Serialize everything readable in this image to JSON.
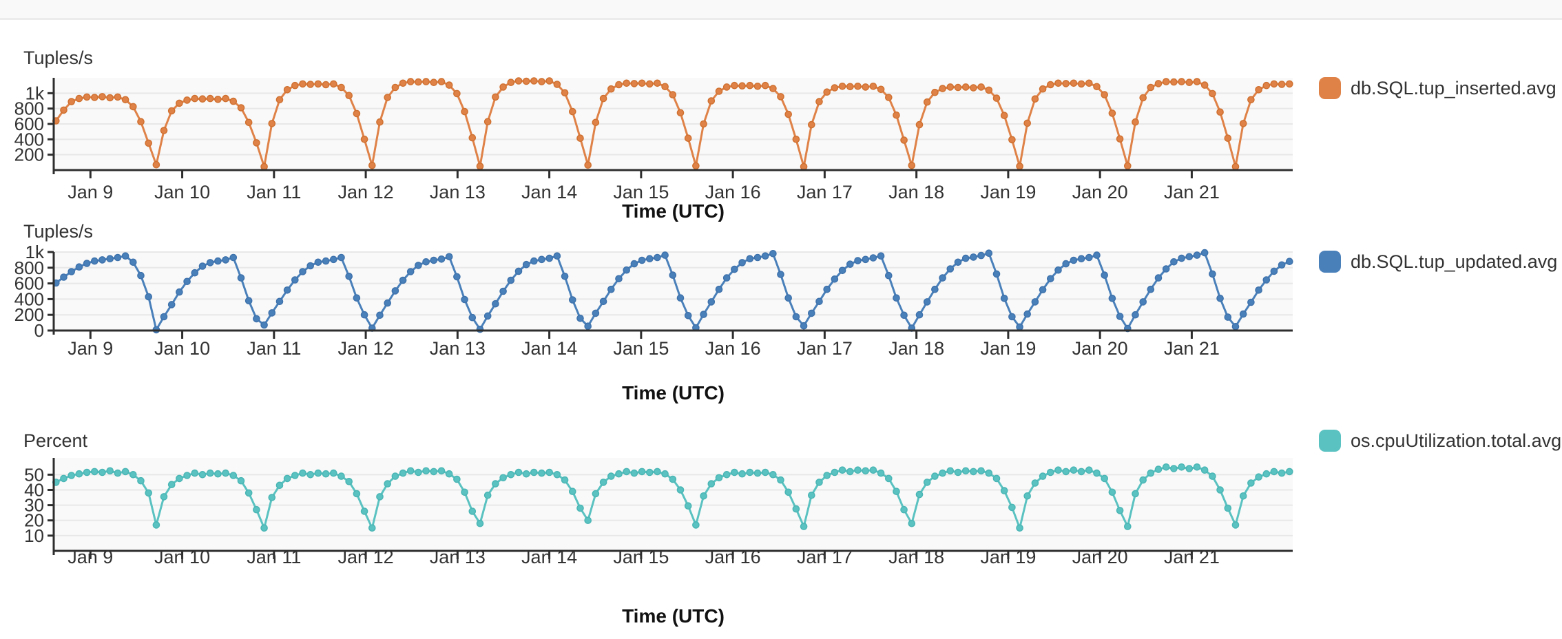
{
  "page": {
    "background": "#ffffff",
    "topbar_color": "#f9f9f9",
    "topbar_border": "#ececec"
  },
  "chart_data": [
    {
      "type": "line",
      "title": "",
      "ylabel": "Tuples/s",
      "xlabel": "Time (UTC)",
      "legend_position": "right-top",
      "grid": true,
      "plot_bg": "#f9f9f9",
      "grid_color": "#e8e8e8",
      "axis_color": "#2e2e2e",
      "text_color": "#333333",
      "x_range": [
        8.6,
        22.1
      ],
      "ylim": [
        0,
        1200
      ],
      "y_ticks": [
        {
          "v": 200,
          "label": "200"
        },
        {
          "v": 400,
          "label": "400"
        },
        {
          "v": 600,
          "label": "600"
        },
        {
          "v": 800,
          "label": "800"
        },
        {
          "v": 1000,
          "label": "1k"
        }
      ],
      "x_ticks": [
        {
          "t": 9,
          "label": "Jan 9"
        },
        {
          "t": 10,
          "label": "Jan 10"
        },
        {
          "t": 11,
          "label": "Jan 11"
        },
        {
          "t": 12,
          "label": "Jan 12"
        },
        {
          "t": 13,
          "label": "Jan 13"
        },
        {
          "t": 14,
          "label": "Jan 14"
        },
        {
          "t": 15,
          "label": "Jan 15"
        },
        {
          "t": 16,
          "label": "Jan 16"
        },
        {
          "t": 17,
          "label": "Jan 17"
        },
        {
          "t": 18,
          "label": "Jan 18"
        },
        {
          "t": 19,
          "label": "Jan 19"
        },
        {
          "t": 20,
          "label": "Jan 20"
        },
        {
          "t": 21,
          "label": "Jan 21"
        }
      ],
      "series": [
        {
          "name": "db.SQL.tup_inserted.avg",
          "color": "#DF8248",
          "edge_color": "#CF702F",
          "t0": 8.625,
          "dt": 0.084,
          "values": [
            640,
            780,
            890,
            930,
            950,
            945,
            955,
            940,
            950,
            915,
            825,
            630,
            350,
            70,
            515,
            770,
            870,
            910,
            930,
            925,
            930,
            920,
            930,
            895,
            810,
            620,
            355,
            45,
            605,
            915,
            1045,
            1100,
            1120,
            1115,
            1120,
            1110,
            1120,
            1075,
            970,
            735,
            400,
            60,
            625,
            945,
            1075,
            1130,
            1150,
            1145,
            1150,
            1140,
            1150,
            1105,
            995,
            760,
            420,
            50,
            630,
            950,
            1080,
            1140,
            1160,
            1155,
            1160,
            1150,
            1160,
            1115,
            1005,
            760,
            415,
            65,
            620,
            930,
            1055,
            1110,
            1130,
            1125,
            1130,
            1120,
            1130,
            1085,
            980,
            745,
            415,
            55,
            600,
            900,
            1025,
            1080,
            1100,
            1095,
            1100,
            1090,
            1100,
            1060,
            955,
            725,
            400,
            45,
            590,
            890,
            1015,
            1070,
            1090,
            1085,
            1090,
            1080,
            1090,
            1050,
            945,
            715,
            390,
            60,
            590,
            885,
            1010,
            1060,
            1080,
            1075,
            1080,
            1070,
            1080,
            1040,
            935,
            710,
            395,
            50,
            610,
            925,
            1055,
            1110,
            1130,
            1125,
            1130,
            1120,
            1130,
            1085,
            980,
            740,
            405,
            55,
            625,
            940,
            1075,
            1125,
            1150,
            1145,
            1150,
            1140,
            1150,
            1105,
            995,
            755,
            415,
            45,
            605,
            915,
            1045,
            1100,
            1120,
            1115,
            1120
          ]
        }
      ]
    },
    {
      "type": "line",
      "title": "",
      "ylabel": "Tuples/s",
      "xlabel": "Time (UTC)",
      "legend_position": "right-top",
      "grid": true,
      "plot_bg": "#f9f9f9",
      "grid_color": "#e8e8e8",
      "axis_color": "#2e2e2e",
      "text_color": "#333333",
      "x_range": [
        8.6,
        22.1
      ],
      "ylim": [
        0,
        1000
      ],
      "y_ticks": [
        {
          "v": 0,
          "label": "0"
        },
        {
          "v": 200,
          "label": "200"
        },
        {
          "v": 400,
          "label": "400"
        },
        {
          "v": 600,
          "label": "600"
        },
        {
          "v": 800,
          "label": "800"
        },
        {
          "v": 1000,
          "label": "1k"
        }
      ],
      "x_ticks": [
        {
          "t": 9,
          "label": "Jan 9"
        },
        {
          "t": 10,
          "label": "Jan 10"
        },
        {
          "t": 11,
          "label": "Jan 11"
        },
        {
          "t": 12,
          "label": "Jan 12"
        },
        {
          "t": 13,
          "label": "Jan 13"
        },
        {
          "t": 14,
          "label": "Jan 14"
        },
        {
          "t": 15,
          "label": "Jan 15"
        },
        {
          "t": 16,
          "label": "Jan 16"
        },
        {
          "t": 17,
          "label": "Jan 17"
        },
        {
          "t": 18,
          "label": "Jan 18"
        },
        {
          "t": 19,
          "label": "Jan 19"
        },
        {
          "t": 20,
          "label": "Jan 20"
        },
        {
          "t": 21,
          "label": "Jan 21"
        }
      ],
      "series": [
        {
          "name": "db.SQL.tup_updated.avg",
          "color": "#4A80BA",
          "edge_color": "#3D71AB",
          "t0": 8.625,
          "dt": 0.084,
          "values": [
            605,
            680,
            750,
            810,
            855,
            885,
            900,
            915,
            930,
            950,
            870,
            700,
            430,
            10,
            175,
            330,
            490,
            625,
            735,
            820,
            865,
            885,
            900,
            930,
            670,
            380,
            150,
            70,
            225,
            370,
            515,
            645,
            750,
            825,
            870,
            885,
            905,
            930,
            690,
            415,
            200,
            30,
            195,
            350,
            505,
            640,
            750,
            830,
            875,
            895,
            910,
            940,
            685,
            395,
            165,
            15,
            185,
            340,
            500,
            640,
            755,
            840,
            885,
            905,
            920,
            950,
            690,
            390,
            155,
            55,
            220,
            370,
            525,
            660,
            770,
            850,
            895,
            915,
            930,
            960,
            705,
            415,
            190,
            35,
            205,
            365,
            525,
            670,
            780,
            865,
            915,
            930,
            950,
            980,
            715,
            415,
            175,
            60,
            220,
            370,
            525,
            655,
            765,
            845,
            890,
            905,
            925,
            950,
            700,
            415,
            195,
            30,
            200,
            365,
            525,
            670,
            785,
            870,
            920,
            935,
            955,
            985,
            720,
            410,
            175,
            45,
            210,
            365,
            520,
            660,
            770,
            850,
            895,
            915,
            930,
            960,
            705,
            410,
            180,
            25,
            200,
            365,
            525,
            670,
            785,
            875,
            920,
            940,
            960,
            990,
            720,
            410,
            170,
            50,
            210,
            360,
            515,
            645,
            755,
            835,
            880
          ]
        }
      ]
    },
    {
      "type": "line",
      "title": "",
      "ylabel": "Percent",
      "xlabel": "Time (UTC)",
      "legend_position": "right-top",
      "grid": true,
      "plot_bg": "#f9f9f9",
      "grid_color": "#e8e8e8",
      "axis_color": "#2e2e2e",
      "text_color": "#333333",
      "x_range": [
        8.6,
        22.1
      ],
      "ylim": [
        0,
        61
      ],
      "y_ticks": [
        {
          "v": 10,
          "label": "10"
        },
        {
          "v": 20,
          "label": "20"
        },
        {
          "v": 30,
          "label": "30"
        },
        {
          "v": 40,
          "label": "40"
        },
        {
          "v": 50,
          "label": "50"
        }
      ],
      "x_ticks": [
        {
          "t": 9,
          "label": "Jan 9"
        },
        {
          "t": 10,
          "label": "Jan 10"
        },
        {
          "t": 11,
          "label": "Jan 11"
        },
        {
          "t": 12,
          "label": "Jan 12"
        },
        {
          "t": 13,
          "label": "Jan 13"
        },
        {
          "t": 14,
          "label": "Jan 14"
        },
        {
          "t": 15,
          "label": "Jan 15"
        },
        {
          "t": 16,
          "label": "Jan 16"
        },
        {
          "t": 17,
          "label": "Jan 17"
        },
        {
          "t": 18,
          "label": "Jan 18"
        },
        {
          "t": 19,
          "label": "Jan 19"
        },
        {
          "t": 20,
          "label": "Jan 20"
        },
        {
          "t": 21,
          "label": "Jan 21"
        }
      ],
      "series": [
        {
          "name": "os.cpuUtilization.total.avg",
          "color": "#5AC2C1",
          "edge_color": "#49B5B4",
          "t0": 8.625,
          "dt": 0.084,
          "values": [
            45,
            47.5,
            49.5,
            50.5,
            51.5,
            52,
            51.5,
            52.5,
            51,
            52,
            50,
            46,
            38,
            17,
            35.5,
            43.5,
            47.5,
            49.5,
            51,
            50,
            51,
            50.5,
            51,
            49.5,
            46,
            38,
            27,
            15,
            35,
            43,
            47.5,
            49.5,
            51,
            50,
            51,
            50.5,
            51,
            49,
            45.5,
            37.5,
            26,
            15,
            35.5,
            44,
            49,
            51,
            52.5,
            51.5,
            52.5,
            52,
            52.5,
            50.5,
            47,
            38.5,
            26,
            18,
            36.5,
            44,
            48,
            50,
            51.5,
            50.5,
            51.5,
            51,
            51.5,
            50,
            46.5,
            39,
            28,
            20,
            37.5,
            45,
            49,
            50.5,
            52,
            51,
            52,
            51.5,
            52,
            50.5,
            47,
            40,
            29.5,
            17,
            36,
            44,
            48,
            50,
            51.5,
            50.5,
            51.5,
            51,
            51.5,
            50,
            46.5,
            38.5,
            27.5,
            16,
            36.5,
            45,
            49.5,
            51.5,
            53,
            52,
            53,
            52.5,
            53,
            51,
            47.5,
            39,
            27,
            18,
            37,
            45,
            49,
            51,
            52.5,
            51.5,
            52.5,
            52,
            52.5,
            51,
            47.5,
            39.5,
            28.5,
            15,
            36,
            44.5,
            49,
            51.5,
            53,
            52,
            53,
            52,
            53,
            51,
            47.5,
            38.5,
            26.5,
            16,
            37.5,
            46.5,
            51,
            53.5,
            55,
            54,
            55,
            54,
            55,
            53,
            49,
            40,
            28,
            17,
            36,
            44.5,
            48.5,
            50.5,
            52,
            51,
            52
          ]
        }
      ]
    }
  ]
}
